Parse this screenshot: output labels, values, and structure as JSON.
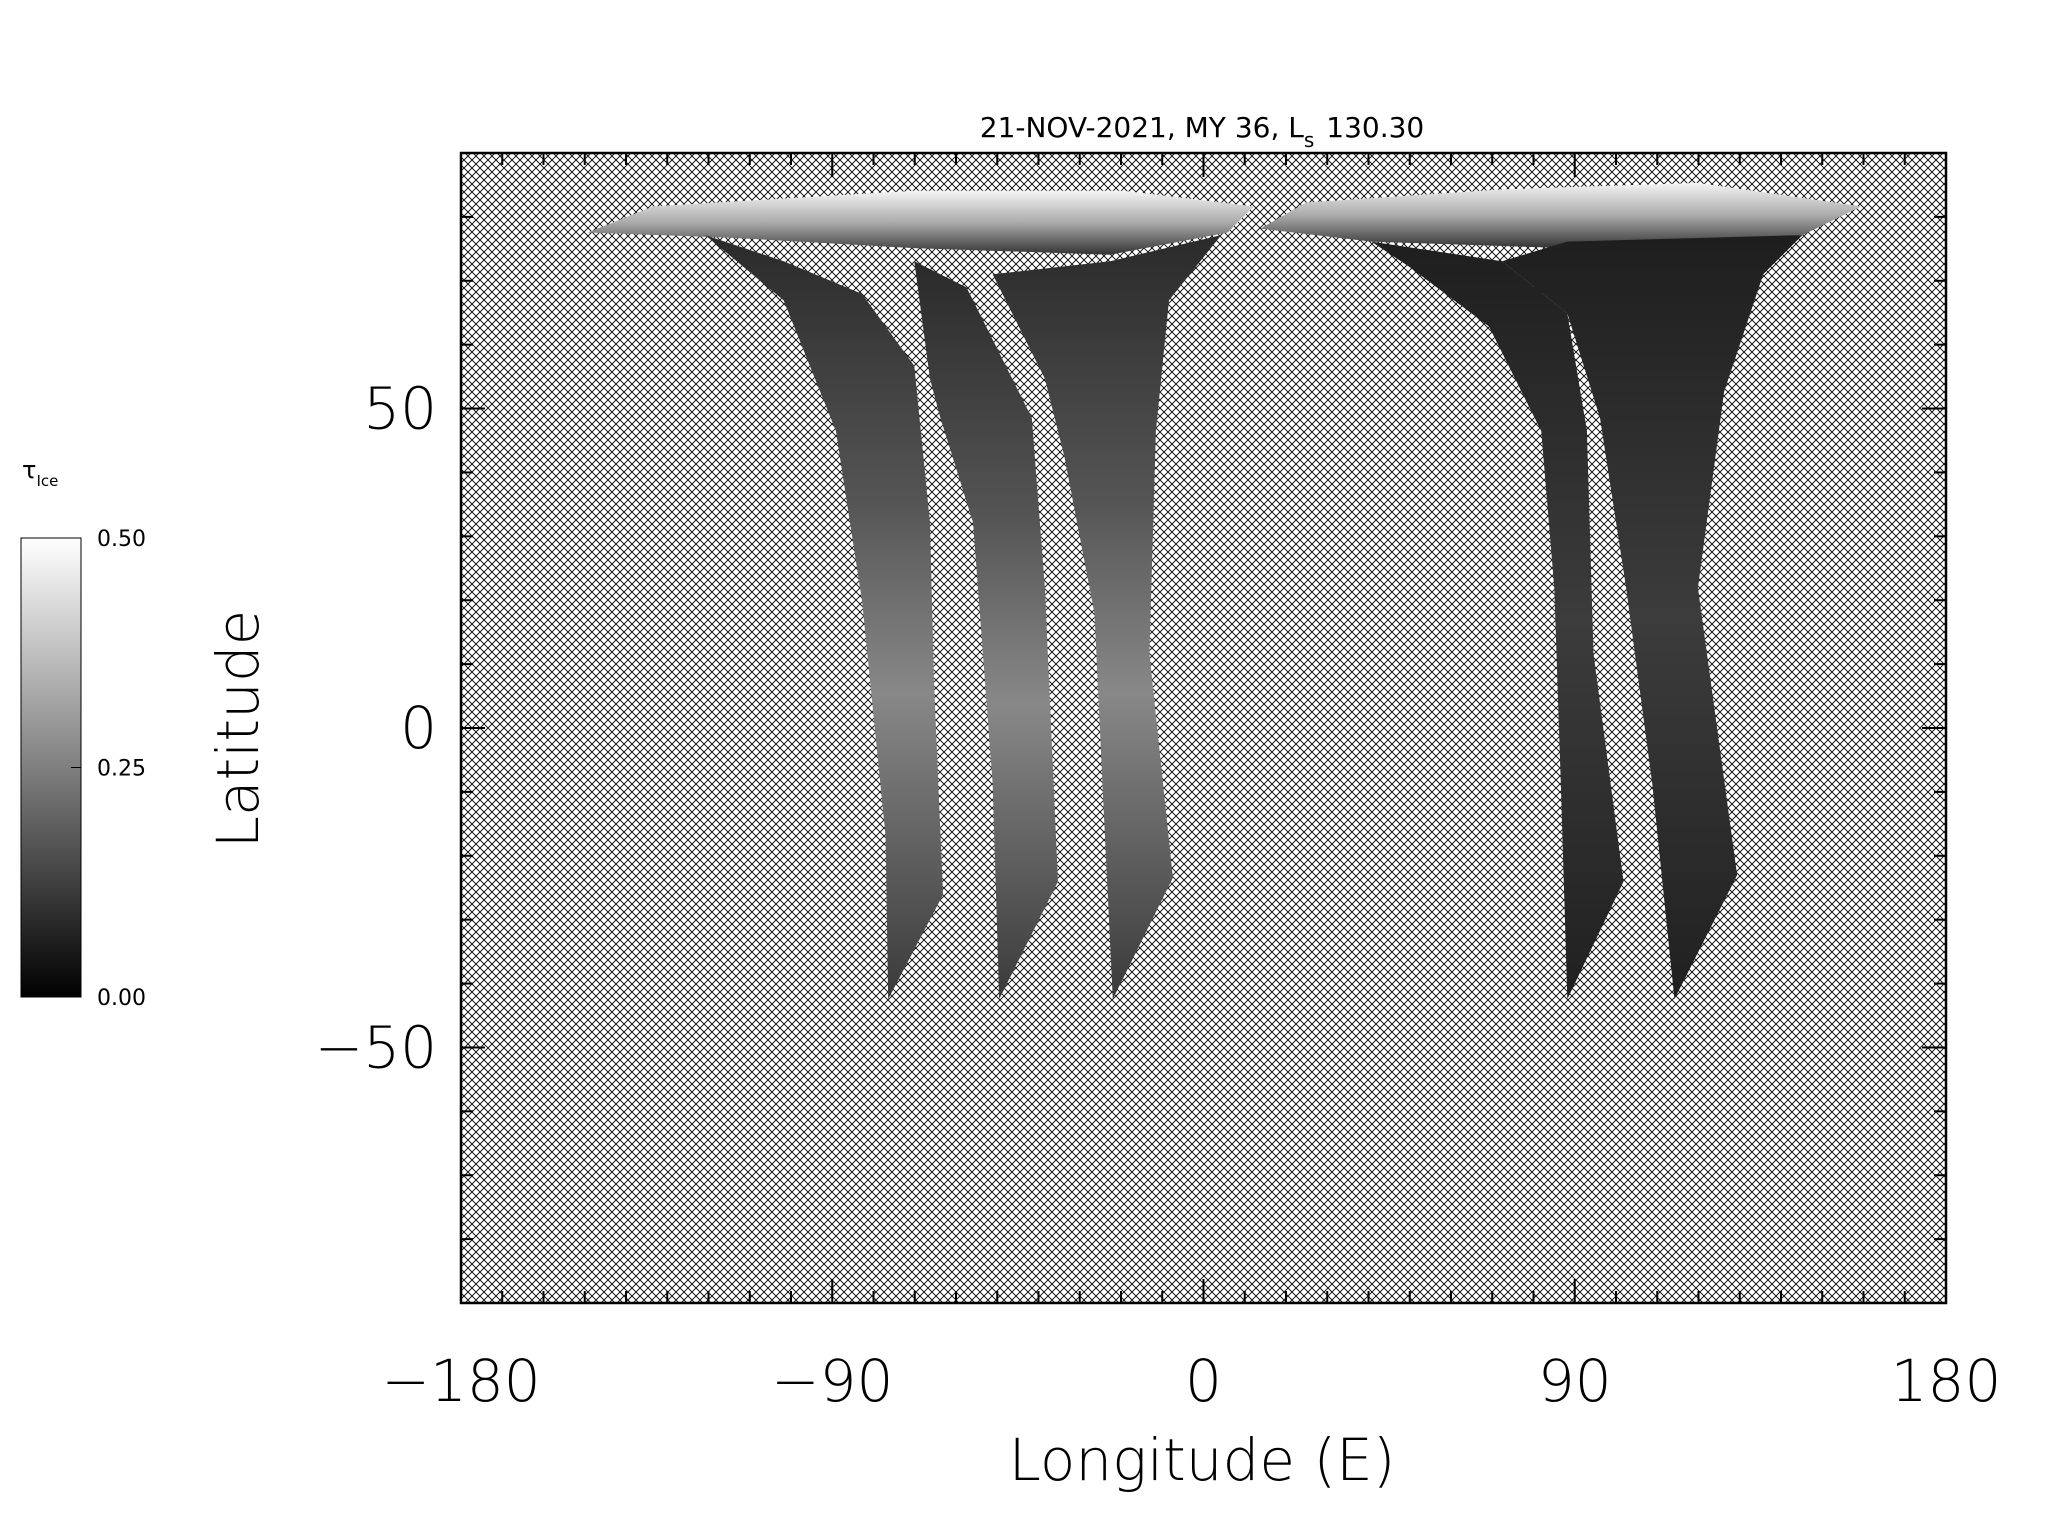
{
  "chart_data": {
    "type": "map",
    "title_prefix": "21-NOV-2021, MY 36,  L",
    "title_subscript": "s",
    "title_suffix": "130.30",
    "xlabel": "Longitude (E)",
    "ylabel": "Latitude",
    "xlim": [
      -180,
      180
    ],
    "ylim": [
      -90,
      90
    ],
    "xticks": [
      {
        "value": -180,
        "label": "−180"
      },
      {
        "value": -90,
        "label": "−90"
      },
      0,
      90,
      {
        "value": 180,
        "label": "180"
      }
    ],
    "yticks": [
      {
        "value": -50,
        "label": "−50"
      },
      0,
      50
    ],
    "colorbar": {
      "label": "τ",
      "label_subscript": "Ice",
      "colormap": "gray",
      "lim": [
        0,
        0.5
      ],
      "ticks": [
        {
          "value": 0,
          "label": "0.00"
        },
        {
          "value": 0.25,
          "label": "0.25"
        },
        {
          "value": 0.5,
          "label": "0.50"
        }
      ]
    }
  }
}
